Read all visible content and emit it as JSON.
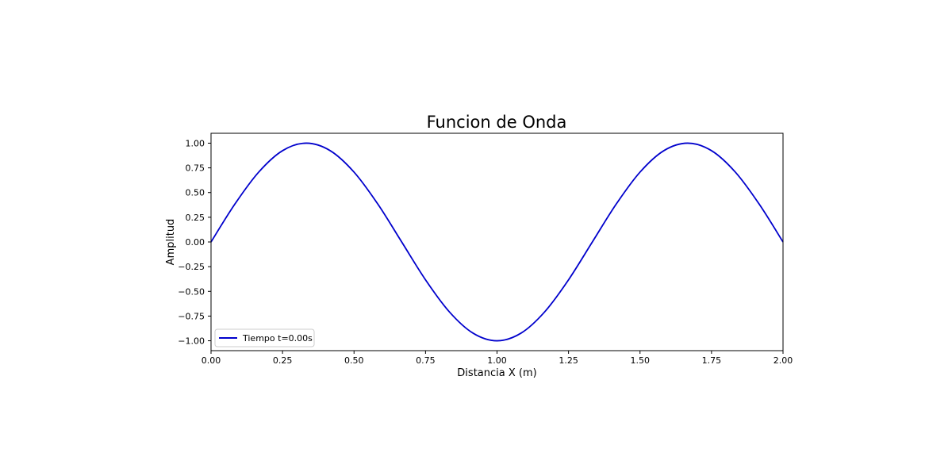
{
  "chart_data": {
    "type": "line",
    "title": "Funcion de Onda",
    "xlabel": "Distancia X (m)",
    "ylabel": "Amplitud",
    "xlim": [
      0,
      2
    ],
    "ylim": [
      -1.1,
      1.1
    ],
    "x_ticks": [
      0,
      0.25,
      0.5,
      0.75,
      1,
      1.25,
      1.5,
      1.75,
      2
    ],
    "x_tick_labels": [
      "0.00",
      "0.25",
      "0.50",
      "0.75",
      "1.00",
      "1.25",
      "1.50",
      "1.75",
      "2.00"
    ],
    "y_ticks": [
      -1,
      -0.75,
      -0.5,
      -0.25,
      0,
      0.25,
      0.5,
      0.75,
      1
    ],
    "y_tick_labels": [
      "−1.00",
      "−0.75",
      "−0.50",
      "−0.25",
      "0.00",
      "0.25",
      "0.50",
      "0.75",
      "1.00"
    ],
    "grid": false,
    "legend_position": "lower-left",
    "series": [
      {
        "name": "Tiempo t=0.00s",
        "color": "#0000cc",
        "x": [
          0,
          0.0833,
          0.1667,
          0.25,
          0.3333,
          0.4167,
          0.5,
          0.5833,
          0.6667,
          0.75,
          0.8333,
          0.9167,
          1,
          1.0833,
          1.1667,
          1.25,
          1.3333,
          1.4167,
          1.5,
          1.5833,
          1.6667,
          1.75,
          1.8333,
          1.9167,
          2
        ],
        "y": [
          0,
          0.383,
          0.707,
          0.924,
          1,
          0.924,
          0.707,
          0.383,
          0,
          -0.383,
          -0.707,
          -0.924,
          -1,
          -0.924,
          -0.707,
          -0.383,
          0,
          0.383,
          0.707,
          0.924,
          1,
          0.924,
          0.707,
          0.383,
          0
        ]
      }
    ]
  }
}
